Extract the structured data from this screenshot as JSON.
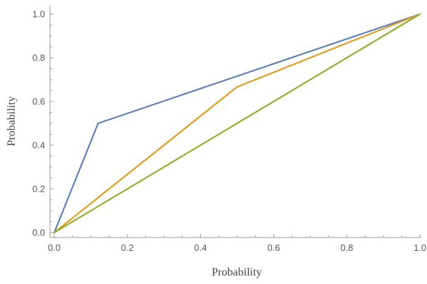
{
  "chart_data": {
    "type": "line",
    "title": "",
    "xlabel": "Probability",
    "ylabel": "Probability",
    "xlim": [
      0,
      1
    ],
    "ylim": [
      0,
      1
    ],
    "x_ticks": [
      "0.0",
      "0.2",
      "0.4",
      "0.6",
      "0.8",
      "1.0"
    ],
    "y_ticks": [
      "0.0",
      "0.2",
      "0.4",
      "0.6",
      "0.8",
      "1.0"
    ],
    "grid": false,
    "legend": "none",
    "series": [
      {
        "color": "#5e81b5",
        "x": [
          0,
          0.12,
          1
        ],
        "y": [
          0,
          0.5,
          1
        ]
      },
      {
        "color": "#e19c24",
        "x": [
          0,
          0.5,
          1
        ],
        "y": [
          0,
          0.667,
          1
        ]
      },
      {
        "color": "#8fb032",
        "x": [
          0,
          1
        ],
        "y": [
          0,
          1
        ]
      }
    ]
  }
}
